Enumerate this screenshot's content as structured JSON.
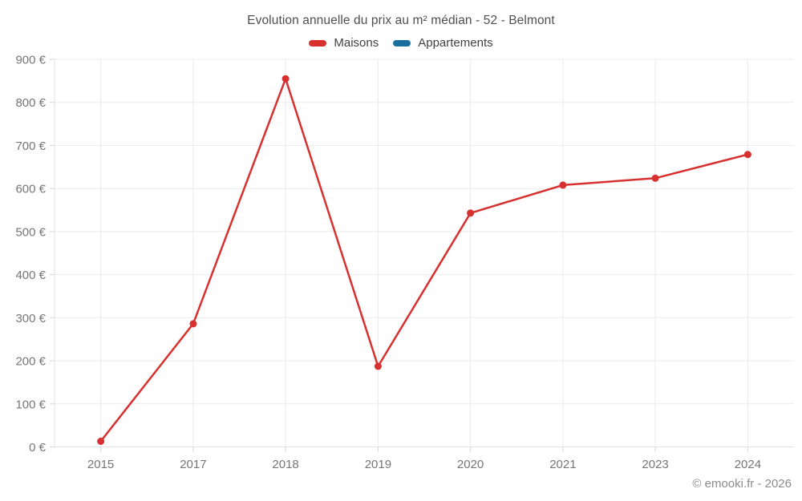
{
  "header": {
    "title": "Evolution annuelle du prix au m² médian - 52 - Belmont"
  },
  "legend": [
    {
      "label": "Maisons",
      "color": "#d7302f"
    },
    {
      "label": "Appartements",
      "color": "#1a6f9e"
    }
  ],
  "footer": {
    "credit": "© emooki.fr - 2026"
  },
  "theme": {
    "grid_color": "#ebebeb",
    "axis_color": "#e2e2e2",
    "tick_color": "#d6d6d6",
    "label_color": "#767676",
    "title_color": "#4f4f4f",
    "background": "#ffffff"
  },
  "chart_data": {
    "type": "line",
    "title": "Evolution annuelle du prix au m² médian - 52 - Belmont",
    "categories": [
      "2015",
      "2017",
      "2018",
      "2019",
      "2020",
      "2021",
      "2023",
      "2024"
    ],
    "series": [
      {
        "name": "Maisons",
        "color": "#d7302f",
        "values": [
          13,
          286,
          855,
          187,
          543,
          608,
          624,
          679
        ]
      },
      {
        "name": "Appartements",
        "color": "#1a6f9e",
        "values": []
      }
    ],
    "xlabel": "",
    "ylabel": "",
    "ylim": [
      0,
      900
    ],
    "y_step": 100,
    "y_tick_labels": [
      "0 €",
      "100 €",
      "200 €",
      "300 €",
      "400 €",
      "500 €",
      "600 €",
      "700 €",
      "800 €",
      "900 €"
    ],
    "grid": true,
    "legend_position": "top",
    "point_radius": 4.5,
    "line_width": 2.5
  }
}
